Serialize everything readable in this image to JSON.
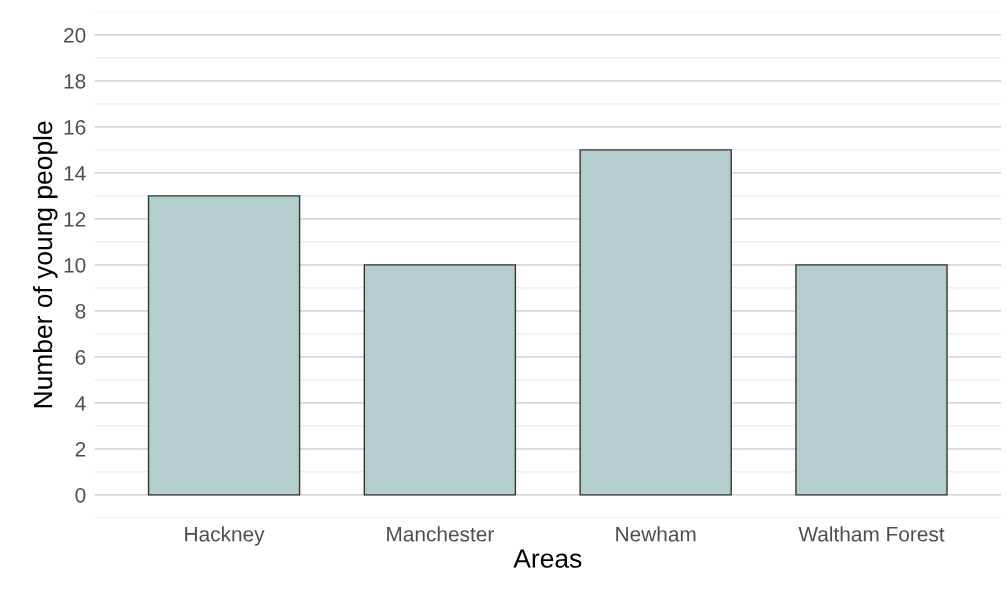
{
  "chart_data": {
    "type": "bar",
    "xlabel": "Areas",
    "ylabel": "Number of young people",
    "categories": [
      "Hackney",
      "Manchester",
      "Newham",
      "Waltham Forest"
    ],
    "values": [
      13,
      10,
      15,
      10
    ],
    "color": "#b4cdcd",
    "ylim": [
      -1,
      21
    ],
    "yticks": [
      0,
      2,
      4,
      6,
      8,
      10,
      12,
      14,
      16,
      18,
      20
    ],
    "grid": "y"
  }
}
